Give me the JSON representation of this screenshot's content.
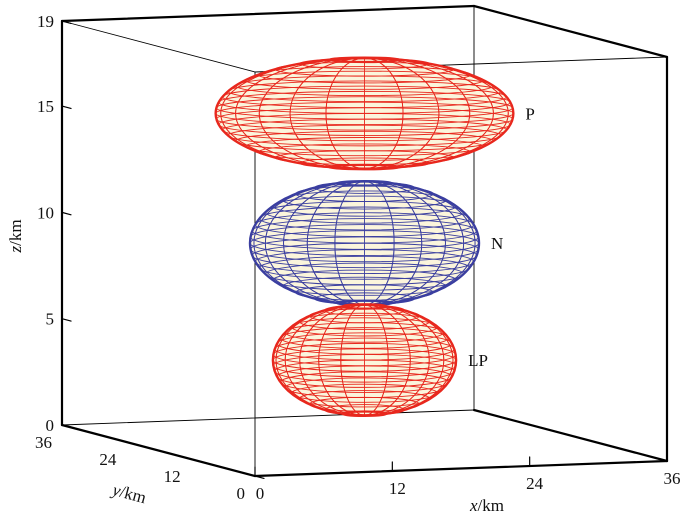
{
  "chart_data": {
    "type": "3d-ellipsoids",
    "axes": {
      "x": {
        "label_var": "x",
        "label_unit": "/km",
        "range": [
          0,
          36
        ],
        "ticks": [
          "0",
          "12",
          "24",
          "36"
        ]
      },
      "y": {
        "label_var": "y",
        "label_unit": "/km",
        "range": [
          0,
          36
        ],
        "ticks": [
          "0",
          "12",
          "24",
          "36"
        ]
      },
      "z": {
        "label_var": "z",
        "label_unit": "/km",
        "range": [
          0,
          19
        ],
        "ticks": [
          "0",
          "5",
          "10",
          "15",
          "19"
        ]
      }
    },
    "bodies": [
      {
        "label": "P",
        "center": [
          18,
          18,
          15.5
        ],
        "semi_axes": [
          13,
          13,
          2.6
        ],
        "color": "#e8281e"
      },
      {
        "label": "N",
        "center": [
          18,
          18,
          9.4
        ],
        "semi_axes": [
          10,
          10,
          2.9
        ],
        "color": "#3b3fa0"
      },
      {
        "label": "LP",
        "center": [
          18,
          18,
          3.9
        ],
        "semi_axes": [
          8,
          8,
          2.6
        ],
        "color": "#e8281e"
      }
    ],
    "fill_color": "#fbf5dc",
    "box": true,
    "grid": false
  }
}
